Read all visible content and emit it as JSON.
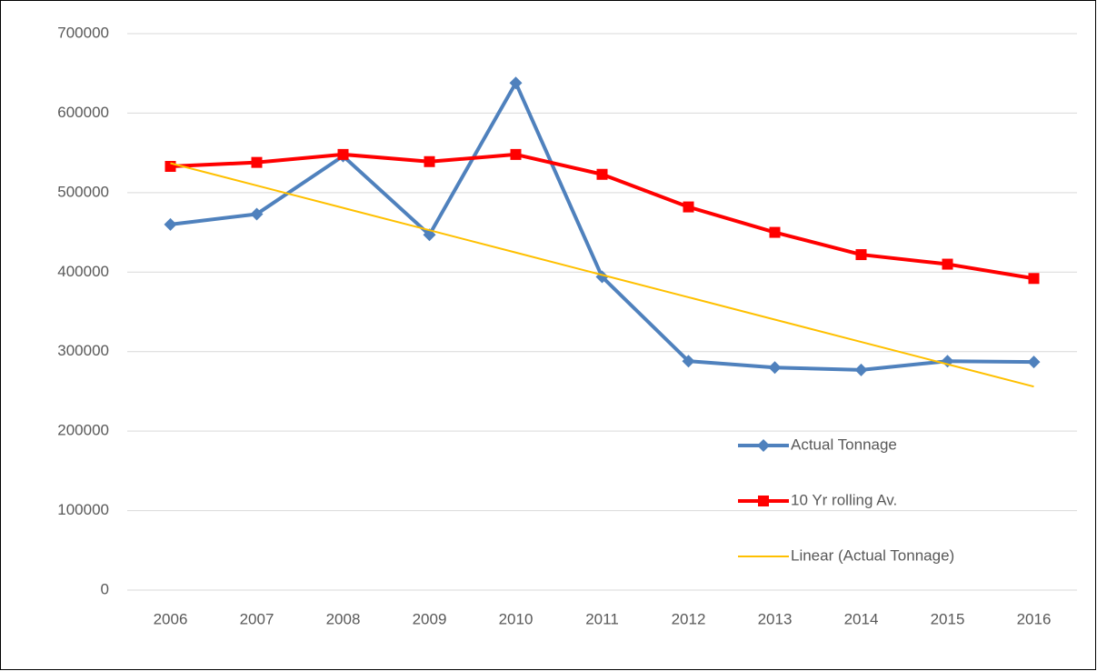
{
  "chart_data": {
    "type": "line",
    "categories": [
      "2006",
      "2007",
      "2008",
      "2009",
      "2010",
      "2011",
      "2012",
      "2013",
      "2014",
      "2015",
      "2016"
    ],
    "series": [
      {
        "name": "Actual Tonnage",
        "color": "#4f81bd",
        "marker": "diamond",
        "width": 4,
        "values": [
          460000,
          473000,
          546000,
          447000,
          638000,
          394000,
          288000,
          280000,
          277000,
          288000,
          287000
        ]
      },
      {
        "name": "10 Yr rolling Av.",
        "color": "#ff0000",
        "marker": "square",
        "width": 4,
        "values": [
          533000,
          538000,
          548000,
          539000,
          548000,
          523000,
          482000,
          450000,
          422000,
          410000,
          392000
        ]
      },
      {
        "name": "Linear (Actual Tonnage)",
        "color": "#ffc000",
        "marker": "none",
        "width": 2,
        "values": [
          537000,
          508900,
          480800,
          452700,
          424600,
          396500,
          368400,
          340300,
          312200,
          284100,
          256000
        ]
      }
    ],
    "ylim": [
      0,
      700000
    ],
    "yticks": [
      0,
      100000,
      200000,
      300000,
      400000,
      500000,
      600000,
      700000
    ],
    "grid": true,
    "legend": "lower right"
  }
}
